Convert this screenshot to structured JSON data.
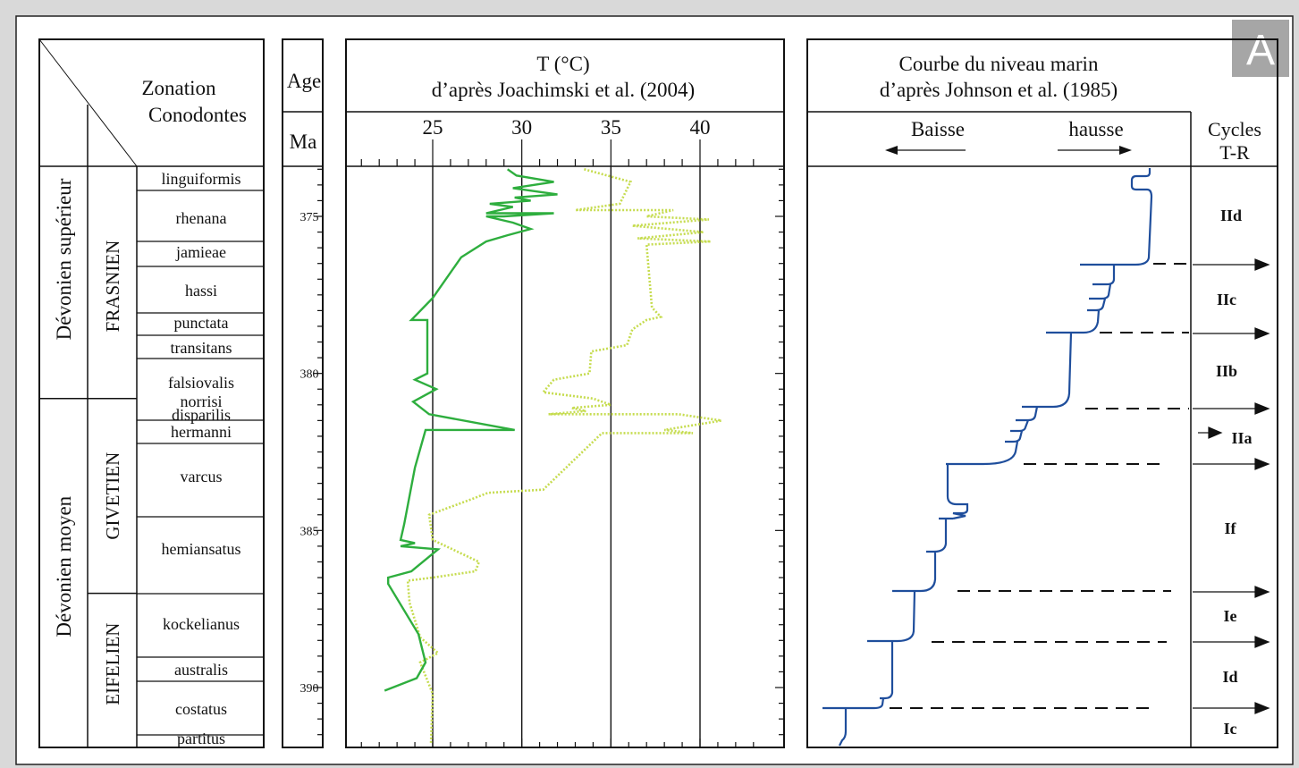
{
  "panel_label": "A",
  "stratigraphy": {
    "header": {
      "line1": "Zonation",
      "line2": "Conodontes"
    },
    "series": [
      {
        "name": "Dévonien supérieur",
        "top": 373.5,
        "bottom": 380.8
      },
      {
        "name": "Dévonien moyen",
        "top": 380.8,
        "bottom": 391.5
      }
    ],
    "stages": [
      {
        "name": "FRASNIEN",
        "top": 373.5,
        "bottom": 380.8
      },
      {
        "name": "GIVETIEN",
        "top": 380.8,
        "bottom": 387.0
      },
      {
        "name": "EIFELIEN",
        "top": 387.0,
        "bottom": 391.5
      }
    ],
    "zones": [
      {
        "name": "linguiformis",
        "top": 373.5,
        "bottom": 374.3
      },
      {
        "name": "rhenana",
        "top": 374.3,
        "bottom": 375.8
      },
      {
        "name": "jamieae",
        "top": 375.8,
        "bottom": 376.6
      },
      {
        "name": "hassi",
        "top": 376.6,
        "bottom": 377.9
      },
      {
        "name": "punctata",
        "top": 377.9,
        "bottom": 378.7
      },
      {
        "name": "transitans",
        "top": 378.7,
        "bottom": 379.3
      },
      {
        "name": "falsiovalis",
        "top": 379.3,
        "bottom": 380.6
      },
      {
        "name": "norrisi",
        "top": 380.6,
        "bottom": 380.8
      },
      {
        "name": "disparilis",
        "top": 380.8,
        "bottom": 381.3
      },
      {
        "name": "hermanni",
        "top": 381.3,
        "bottom": 381.8
      },
      {
        "name": "varcus",
        "top": 381.8,
        "bottom": 384.5
      },
      {
        "name": "hemiansatus",
        "top": 384.5,
        "bottom": 387.0
      },
      {
        "name": "kockelianus",
        "top": 387.0,
        "bottom": 389.0
      },
      {
        "name": "australis",
        "top": 389.0,
        "bottom": 389.8
      },
      {
        "name": "costatus",
        "top": 389.8,
        "bottom": 391.1
      },
      {
        "name": "partitus",
        "top": 391.1,
        "bottom": 391.5
      }
    ]
  },
  "age": {
    "title": "Age",
    "unit": "Ma",
    "top": 373.5,
    "bottom": 391.8,
    "ticks": [
      375,
      380,
      385,
      390
    ]
  },
  "temperature": {
    "title_line1": "T (°C)",
    "title_line2": "d’après Joachimski et al. (2004)",
    "xlim": [
      20,
      43
    ],
    "ticks": [
      25,
      30,
      35,
      40
    ],
    "green": [
      [
        29.2,
        373.5
      ],
      [
        29.7,
        373.7
      ],
      [
        31.8,
        373.9
      ],
      [
        29.5,
        374.1
      ],
      [
        32.0,
        374.3
      ],
      [
        29.6,
        374.4
      ],
      [
        30.5,
        374.5
      ],
      [
        28.2,
        374.6
      ],
      [
        29.5,
        374.7
      ],
      [
        28.0,
        374.9
      ],
      [
        31.8,
        374.9
      ],
      [
        29.0,
        375.0
      ],
      [
        28.0,
        375.0
      ],
      [
        29.5,
        375.2
      ],
      [
        30.5,
        375.4
      ],
      [
        29.2,
        375.6
      ],
      [
        28.0,
        375.8
      ],
      [
        26.6,
        376.3
      ],
      [
        25.0,
        377.6
      ],
      [
        23.8,
        378.3
      ],
      [
        24.7,
        378.3
      ],
      [
        24.7,
        380.0
      ],
      [
        24.0,
        380.2
      ],
      [
        25.2,
        380.5
      ],
      [
        23.9,
        380.9
      ],
      [
        24.8,
        381.3
      ],
      [
        29.6,
        381.8
      ],
      [
        24.6,
        381.8
      ],
      [
        24.0,
        383.0
      ],
      [
        23.4,
        384.8
      ],
      [
        23.2,
        385.3
      ],
      [
        24.0,
        385.4
      ],
      [
        23.2,
        385.5
      ],
      [
        25.3,
        385.6
      ],
      [
        23.8,
        386.3
      ],
      [
        22.5,
        386.5
      ],
      [
        22.5,
        386.7
      ],
      [
        24.2,
        388.3
      ],
      [
        24.6,
        389.2
      ],
      [
        24.1,
        389.7
      ],
      [
        22.3,
        390.1
      ]
    ],
    "yellow": [
      [
        33.5,
        373.5
      ],
      [
        36.1,
        373.9
      ],
      [
        35.5,
        374.6
      ],
      [
        33.0,
        374.8
      ],
      [
        38.5,
        374.8
      ],
      [
        37.0,
        375.0
      ],
      [
        40.5,
        375.1
      ],
      [
        36.2,
        375.3
      ],
      [
        40.2,
        375.5
      ],
      [
        36.5,
        375.7
      ],
      [
        40.6,
        375.8
      ],
      [
        37.0,
        375.9
      ],
      [
        37.3,
        377.9
      ],
      [
        37.8,
        378.2
      ],
      [
        37.0,
        378.3
      ],
      [
        36.2,
        378.6
      ],
      [
        35.9,
        379.1
      ],
      [
        33.9,
        379.3
      ],
      [
        33.8,
        380.0
      ],
      [
        31.8,
        380.2
      ],
      [
        31.2,
        380.6
      ],
      [
        34.0,
        380.8
      ],
      [
        35.0,
        381.0
      ],
      [
        32.8,
        381.1
      ],
      [
        33.6,
        381.2
      ],
      [
        31.5,
        381.3
      ],
      [
        38.8,
        381.3
      ],
      [
        41.2,
        381.5
      ],
      [
        38.0,
        381.8
      ],
      [
        39.6,
        381.9
      ],
      [
        34.5,
        381.9
      ],
      [
        31.2,
        383.7
      ],
      [
        28.1,
        383.8
      ],
      [
        27.2,
        384.0
      ],
      [
        24.8,
        384.5
      ],
      [
        25.0,
        385.3
      ],
      [
        27.6,
        386.0
      ],
      [
        27.4,
        386.3
      ],
      [
        25.0,
        386.5
      ],
      [
        23.6,
        386.6
      ],
      [
        23.7,
        387.3
      ],
      [
        24.3,
        388.4
      ],
      [
        25.3,
        388.9
      ],
      [
        24.3,
        389.2
      ],
      [
        25.0,
        390.2
      ],
      [
        24.9,
        391.8
      ]
    ]
  },
  "sea_level": {
    "title_line1": "Courbe du niveau marin",
    "title_line2": "d’après Johnson et al. (1985)",
    "left_label": "Baisse",
    "right_label": "hausse"
  },
  "cycles": {
    "header_line1": "Cycles",
    "header_line2": "T-R",
    "items": [
      {
        "name": "IId",
        "top": 373.5,
        "bottom": 376.5
      },
      {
        "name": "IIc",
        "top": 376.5,
        "bottom": 378.8
      },
      {
        "name": "IIb",
        "top": 378.8,
        "bottom": 380.7
      },
      {
        "name": "IIa",
        "top": 380.7,
        "bottom": 382.4
      },
      {
        "name": "If",
        "top": 382.4,
        "bottom": 386.9
      },
      {
        "name": "Ie",
        "top": 386.9,
        "bottom": 388.5
      },
      {
        "name": "Id",
        "top": 388.5,
        "bottom": 390.8
      },
      {
        "name": "Ic",
        "top": 390.8,
        "bottom": 391.8
      }
    ]
  }
}
